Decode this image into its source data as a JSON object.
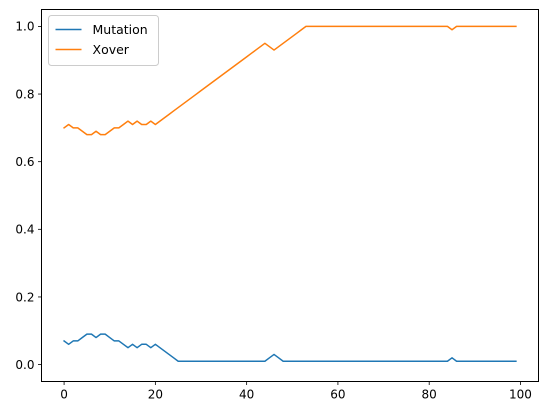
{
  "chart_data": {
    "type": "line",
    "title": "",
    "xlabel": "",
    "ylabel": "",
    "xlim": [
      -4.95,
      103.95
    ],
    "ylim": [
      -0.05,
      1.05
    ],
    "xticks": [
      0,
      20,
      40,
      60,
      80,
      100
    ],
    "xtick_labels": [
      "0",
      "20",
      "40",
      "60",
      "80",
      "100"
    ],
    "yticks": [
      0.0,
      0.2,
      0.4,
      0.6,
      0.8,
      1.0
    ],
    "ytick_labels": [
      "0.0",
      "0.2",
      "0.4",
      "0.6",
      "0.8",
      "1.0"
    ],
    "grid": false,
    "legend": {
      "position": "upper-left"
    },
    "x": [
      0,
      1,
      2,
      3,
      4,
      5,
      6,
      7,
      8,
      9,
      10,
      11,
      12,
      13,
      14,
      15,
      16,
      17,
      18,
      19,
      20,
      21,
      22,
      23,
      24,
      25,
      26,
      27,
      28,
      29,
      30,
      31,
      32,
      33,
      34,
      35,
      36,
      37,
      38,
      39,
      40,
      41,
      42,
      43,
      44,
      45,
      46,
      47,
      48,
      49,
      50,
      51,
      52,
      53,
      54,
      55,
      56,
      57,
      58,
      59,
      60,
      61,
      62,
      63,
      64,
      65,
      66,
      67,
      68,
      69,
      70,
      71,
      72,
      73,
      74,
      75,
      76,
      77,
      78,
      79,
      80,
      81,
      82,
      83,
      84,
      85,
      86,
      87,
      88,
      89,
      90,
      91,
      92,
      93,
      94,
      95,
      96,
      97,
      98,
      99
    ],
    "series": [
      {
        "name": "Mutation",
        "color": "#1f77b4",
        "values": [
          0.07,
          0.06,
          0.07,
          0.07,
          0.08,
          0.09,
          0.09,
          0.08,
          0.09,
          0.09,
          0.08,
          0.07,
          0.07,
          0.06,
          0.05,
          0.06,
          0.05,
          0.06,
          0.06,
          0.05,
          0.06,
          0.05,
          0.04,
          0.03,
          0.02,
          0.01,
          0.01,
          0.01,
          0.01,
          0.01,
          0.01,
          0.01,
          0.01,
          0.01,
          0.01,
          0.01,
          0.01,
          0.01,
          0.01,
          0.01,
          0.01,
          0.01,
          0.01,
          0.01,
          0.01,
          0.02,
          0.03,
          0.02,
          0.01,
          0.01,
          0.01,
          0.01,
          0.01,
          0.01,
          0.01,
          0.01,
          0.01,
          0.01,
          0.01,
          0.01,
          0.01,
          0.01,
          0.01,
          0.01,
          0.01,
          0.01,
          0.01,
          0.01,
          0.01,
          0.01,
          0.01,
          0.01,
          0.01,
          0.01,
          0.01,
          0.01,
          0.01,
          0.01,
          0.01,
          0.01,
          0.01,
          0.01,
          0.01,
          0.01,
          0.01,
          0.02,
          0.01,
          0.01,
          0.01,
          0.01,
          0.01,
          0.01,
          0.01,
          0.01,
          0.01,
          0.01,
          0.01,
          0.01,
          0.01,
          0.01
        ]
      },
      {
        "name": "Xover",
        "color": "#ff7f0e",
        "values": [
          0.7,
          0.71,
          0.7,
          0.7,
          0.69,
          0.68,
          0.68,
          0.69,
          0.68,
          0.68,
          0.69,
          0.7,
          0.7,
          0.71,
          0.72,
          0.71,
          0.72,
          0.71,
          0.71,
          0.72,
          0.71,
          0.72,
          0.73,
          0.74,
          0.75,
          0.76,
          0.77,
          0.78,
          0.79,
          0.8,
          0.81,
          0.82,
          0.83,
          0.84,
          0.85,
          0.86,
          0.87,
          0.88,
          0.89,
          0.9,
          0.91,
          0.92,
          0.93,
          0.94,
          0.95,
          0.94,
          0.93,
          0.94,
          0.95,
          0.96,
          0.97,
          0.98,
          0.99,
          1.0,
          1.0,
          1.0,
          1.0,
          1.0,
          1.0,
          1.0,
          1.0,
          1.0,
          1.0,
          1.0,
          1.0,
          1.0,
          1.0,
          1.0,
          1.0,
          1.0,
          1.0,
          1.0,
          1.0,
          1.0,
          1.0,
          1.0,
          1.0,
          1.0,
          1.0,
          1.0,
          1.0,
          1.0,
          1.0,
          1.0,
          1.0,
          0.99,
          1.0,
          1.0,
          1.0,
          1.0,
          1.0,
          1.0,
          1.0,
          1.0,
          1.0,
          1.0,
          1.0,
          1.0,
          1.0,
          1.0
        ]
      }
    ]
  }
}
